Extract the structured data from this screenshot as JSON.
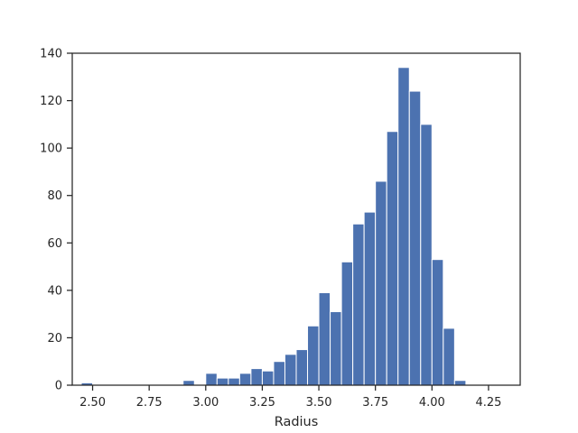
{
  "chart_data": {
    "type": "bar",
    "title": "",
    "xlabel": "Radius",
    "ylabel": "",
    "xlim": [
      2.41,
      4.39
    ],
    "ylim": [
      0,
      140
    ],
    "xticks": [
      2.5,
      2.75,
      3.0,
      3.25,
      3.5,
      3.75,
      4.0,
      4.25
    ],
    "xtick_labels": [
      "2.50",
      "2.75",
      "3.00",
      "3.25",
      "3.50",
      "3.75",
      "4.00",
      "4.25"
    ],
    "yticks": [
      0,
      20,
      40,
      60,
      80,
      100,
      120,
      140
    ],
    "ytick_labels": [
      "0",
      "20",
      "40",
      "60",
      "80",
      "100",
      "120",
      "140"
    ],
    "grid": false,
    "legend": "none",
    "bar_color": "#4c72b0",
    "bin_edges": [
      2.45,
      2.5,
      2.55,
      2.6,
      2.65,
      2.7,
      2.75,
      2.8,
      2.85,
      2.9,
      2.95,
      3.0,
      3.05,
      3.1,
      3.15,
      3.2,
      3.25,
      3.3,
      3.35,
      3.4,
      3.45,
      3.5,
      3.55,
      3.6,
      3.65,
      3.7,
      3.75,
      3.8,
      3.85,
      3.9,
      3.95,
      4.0,
      4.05,
      4.1,
      4.15,
      4.2,
      4.25,
      4.3
    ],
    "values": [
      1,
      0,
      0,
      0,
      0,
      0,
      0,
      0,
      0,
      2,
      0,
      5,
      3,
      3,
      5,
      7,
      6,
      10,
      13,
      15,
      25,
      39,
      31,
      52,
      68,
      73,
      86,
      107,
      134,
      124,
      110,
      53,
      24,
      2,
      0,
      0,
      0
    ]
  }
}
